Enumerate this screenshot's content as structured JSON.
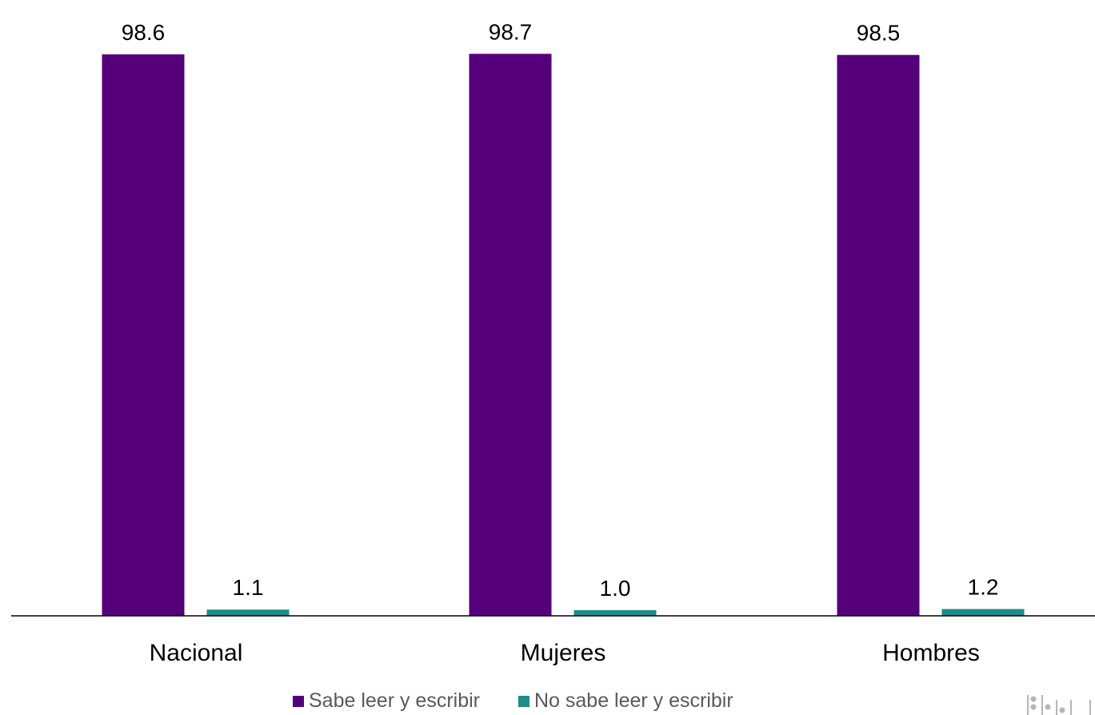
{
  "chart_data": {
    "type": "bar",
    "categories": [
      "Nacional",
      "Mujeres",
      "Hombres"
    ],
    "series": [
      {
        "name": "Sabe leer y escribir",
        "values": [
          98.6,
          98.7,
          98.5
        ],
        "labels": [
          "98.6",
          "98.7",
          "98.5"
        ],
        "color": "#55007A"
      },
      {
        "name": "No sabe leer y escribir",
        "values": [
          1.1,
          1.0,
          1.2
        ],
        "labels": [
          "1.1",
          "1.0",
          "1.2"
        ],
        "color": "#1E8C87"
      }
    ],
    "title": "",
    "xlabel": "",
    "ylabel": "",
    "ylim": [
      0,
      100
    ],
    "grid": false,
    "legend": "bottom-center"
  },
  "logo": {
    "icon": "inegi-logo-icon"
  }
}
